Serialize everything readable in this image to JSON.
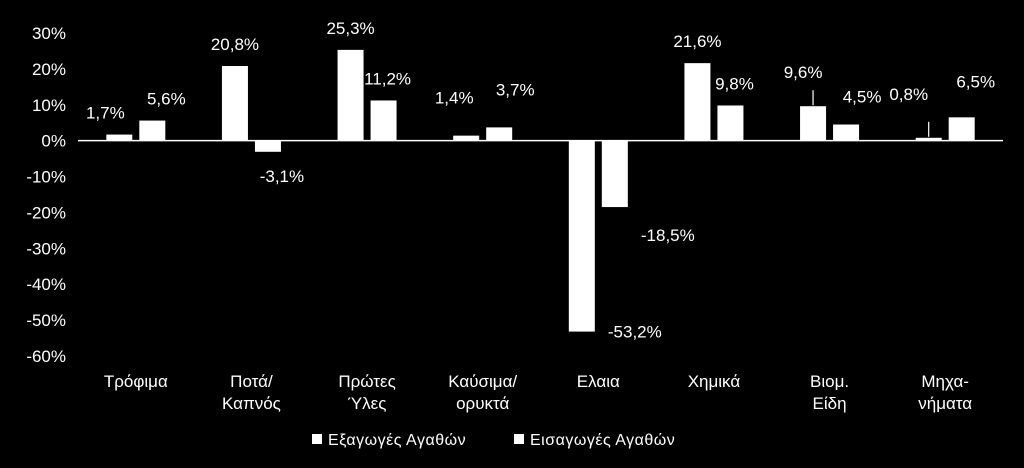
{
  "chart_data": {
    "type": "bar",
    "categories": [
      [
        "Τρόφιμα"
      ],
      [
        "Ποτά/",
        "Καπνός"
      ],
      [
        "Πρώτες",
        "Ύλες"
      ],
      [
        "Καύσιμα/",
        "ορυκτά"
      ],
      [
        "Ελαια"
      ],
      [
        "Χημικά"
      ],
      [
        "Βιομ.",
        "Είδη"
      ],
      [
        "Μηχα-",
        "νήματα"
      ]
    ],
    "series": [
      {
        "name": "Εξαγωγές Αγαθών",
        "values": [
          1.7,
          20.8,
          25.3,
          1.4,
          -53.2,
          21.6,
          9.6,
          0.8
        ],
        "labels": [
          "1,7%",
          "20,8%",
          "25,3%",
          "1,4%",
          "-53,2%",
          "21,6%",
          "9,6%",
          "0,8%"
        ],
        "color": "#ffffff"
      },
      {
        "name": "Εισαγωγές Αγαθών",
        "values": [
          5.6,
          -3.1,
          11.2,
          3.7,
          -18.5,
          9.8,
          4.5,
          6.5
        ],
        "labels": [
          "5,6%",
          "-3,1%",
          "11,2%",
          "3,7%",
          "-18,5%",
          "9,8%",
          "4,5%",
          "6,5%"
        ],
        "color": "#ffffff"
      }
    ],
    "yticks": [
      "30%",
      "20%",
      "10%",
      "0%",
      "-10%",
      "-20%",
      "-30%",
      "-40%",
      "-50%",
      "-60%"
    ],
    "ylim": [
      -60,
      30
    ],
    "title": "",
    "xlabel": "",
    "ylabel": "",
    "grid": false,
    "legend": "bottom",
    "background": "#000000"
  }
}
